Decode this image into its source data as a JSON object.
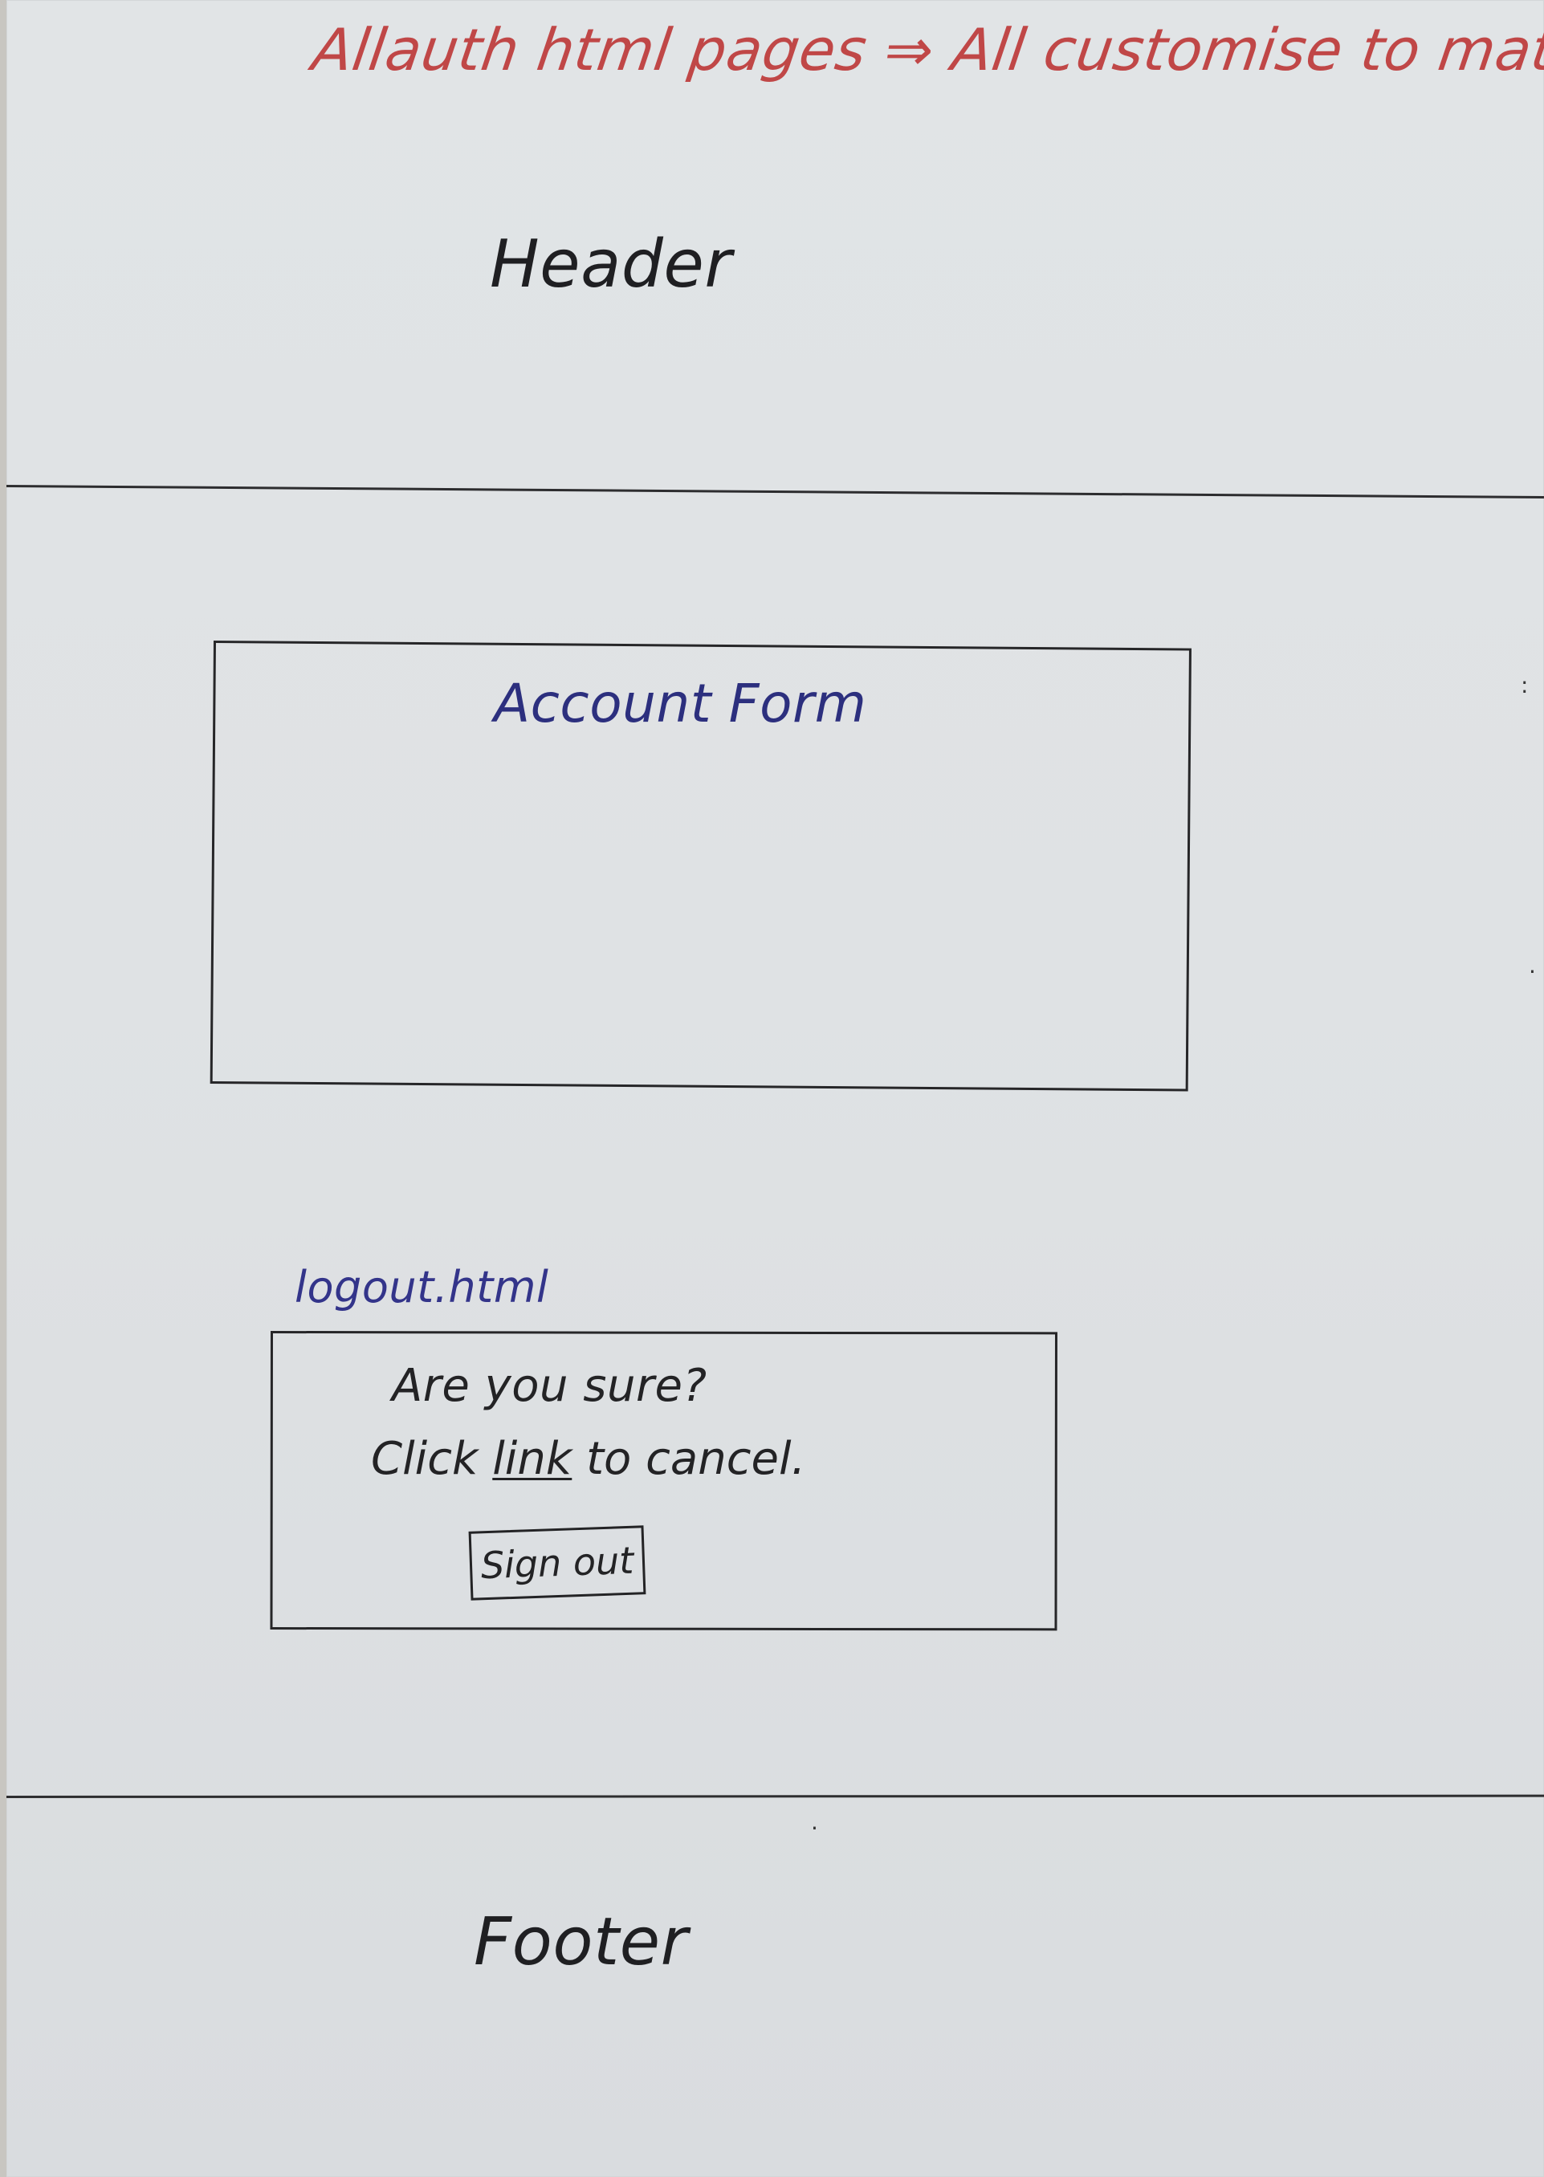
{
  "wireframe": {
    "note": "Allauth html pages ⇒ All customise to match theme.",
    "header_label": "Header",
    "account_form_label": "Account Form",
    "logout_page_label": "logout.html",
    "logout_prompt": "Are you sure?",
    "logout_cancel_prefix": "Click ",
    "logout_cancel_link": "link",
    "logout_cancel_suffix": " to cancel.",
    "sign_out_label": "Sign out",
    "footer_label": "Footer"
  },
  "colors": {
    "paper": "#e1e4e6",
    "red_ink": "#c04747",
    "blue_ink": "#2c2f7e",
    "black_ink": "#232325"
  }
}
